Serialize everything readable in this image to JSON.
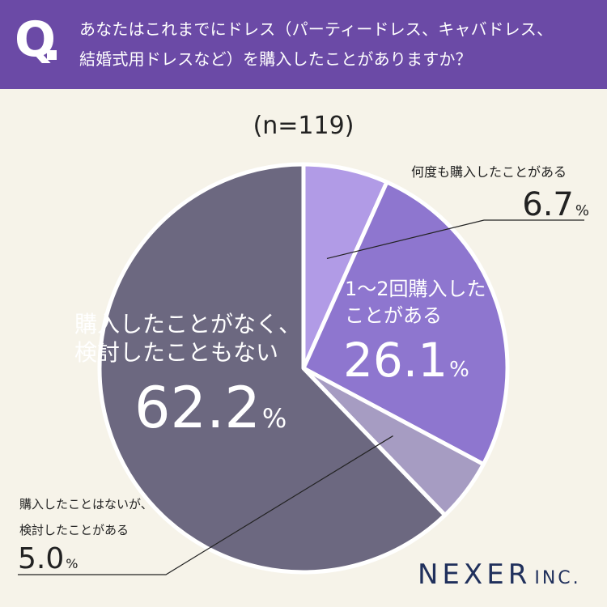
{
  "question": {
    "mark": "Q",
    "line1": "あなたはこれまでにドレス（パーティードレス、キャバドレス、",
    "line2": "結婚式用ドレスなど）を購入したことがありますか？"
  },
  "sample": "(n=119)",
  "brand": {
    "name": "NEXER",
    "suffix": "INC."
  },
  "chart_data": {
    "type": "pie",
    "title": "",
    "n": 119,
    "unit": "%",
    "slices": [
      {
        "name": "何度も購入したことがある",
        "label_lines": [
          "何度も購入したことがある"
        ],
        "value": 6.7,
        "value_text": "6.7",
        "color": "#b19be6"
      },
      {
        "name": "1〜2回購入したことがある",
        "label_lines": [
          "1〜2回購入した",
          "ことがある"
        ],
        "value": 26.1,
        "value_text": "26.1",
        "color": "#8e76cf"
      },
      {
        "name": "購入したことはないが、検討したことがある",
        "label_lines": [
          "購入したことはないが、",
          "検討したことがある"
        ],
        "value": 5.0,
        "value_text": "5.0",
        "color": "#a69cc2"
      },
      {
        "name": "購入したことがなく、検討したこともない",
        "label_lines": [
          "購入したことがなく、",
          "検討したこともない"
        ],
        "value": 62.2,
        "value_text": "62.2",
        "color": "#6c6880"
      }
    ]
  }
}
